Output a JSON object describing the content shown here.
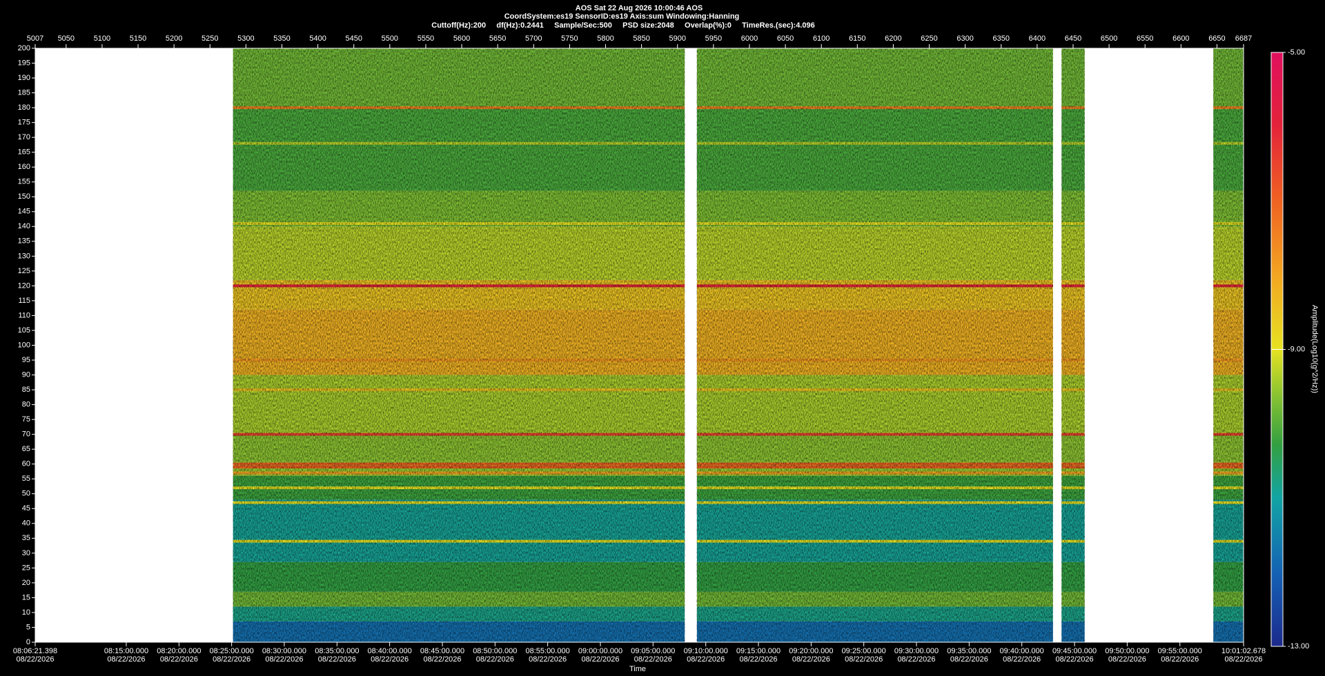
{
  "chart_data": {
    "type": "spectrogram",
    "title": "AOS  Sat 22 Aug 2026 10:00:46  AOS",
    "subtitle": "CoordSystem:es19   SensorID:es19   Axis:sum   Windowing:Hanning",
    "settings_line": "Cuttoff(Hz):200     df(Hz):0.2441     Sample/Sec:500     PSD size:2048     Overlap(%):0     TimeRes.(sec):4.096",
    "xlabel": "Time",
    "colorbar_label": "Amplitude(Log10(g^2/Hz))",
    "xlim": [
      5007,
      6687
    ],
    "xticks": [
      5007,
      5050,
      5100,
      5150,
      5200,
      5250,
      5300,
      5350,
      5400,
      5450,
      5500,
      5550,
      5600,
      5650,
      5700,
      5750,
      5800,
      5850,
      5900,
      5950,
      6000,
      6050,
      6100,
      6150,
      6200,
      6250,
      6300,
      6350,
      6400,
      6450,
      6500,
      6550,
      6600,
      6650,
      6687
    ],
    "x2ticks": [
      {
        "value": 5007,
        "label": "08:06:21.398\n08/22/2026"
      },
      {
        "value": 5133.6,
        "label": "08:15:00.000\n08/22/2026"
      },
      {
        "value": 5206.9,
        "label": "08:20:00.000\n08/22/2026"
      },
      {
        "value": 5280.1,
        "label": "08:25:00.000\n08/22/2026"
      },
      {
        "value": 5353.3,
        "label": "08:30:00.000\n08/22/2026"
      },
      {
        "value": 5426.6,
        "label": "08:35:00.000\n08/22/2026"
      },
      {
        "value": 5499.8,
        "label": "08:40:00.000\n08/22/2026"
      },
      {
        "value": 5573.1,
        "label": "08:45:00.000\n08/22/2026"
      },
      {
        "value": 5646.3,
        "label": "08:50:00.000\n08/22/2026"
      },
      {
        "value": 5719.5,
        "label": "08:55:00.000\n08/22/2026"
      },
      {
        "value": 5792.8,
        "label": "09:00:00.000\n08/22/2026"
      },
      {
        "value": 5866.0,
        "label": "09:05:00.000\n08/22/2026"
      },
      {
        "value": 5939.3,
        "label": "09:10:00.000\n08/22/2026"
      },
      {
        "value": 6012.5,
        "label": "09:15:00.000\n08/22/2026"
      },
      {
        "value": 6085.8,
        "label": "09:20:00.000\n08/22/2026"
      },
      {
        "value": 6159.0,
        "label": "09:25:00.000\n08/22/2026"
      },
      {
        "value": 6232.2,
        "label": "09:30:00.000\n08/22/2026"
      },
      {
        "value": 6305.5,
        "label": "09:35:00.000\n08/22/2026"
      },
      {
        "value": 6378.7,
        "label": "09:40:00.000\n08/22/2026"
      },
      {
        "value": 6452.0,
        "label": "09:45:00.000\n08/22/2026"
      },
      {
        "value": 6525.2,
        "label": "09:50:00.000\n08/22/2026"
      },
      {
        "value": 6598.5,
        "label": "09:55:00.000\n08/22/2026"
      },
      {
        "value": 6687,
        "label": "10:01:02.678\n08/22/2026"
      }
    ],
    "ylim": [
      0,
      200
    ],
    "yticks": [
      0,
      5,
      10,
      15,
      20,
      25,
      30,
      35,
      40,
      45,
      50,
      55,
      60,
      65,
      70,
      75,
      80,
      85,
      90,
      95,
      100,
      105,
      110,
      115,
      120,
      125,
      130,
      135,
      140,
      145,
      150,
      155,
      160,
      165,
      170,
      175,
      180,
      185,
      190,
      195,
      200
    ],
    "zlim": [
      -13,
      -5
    ],
    "zticks": [
      {
        "value": -13,
        "label": "-13.00"
      },
      {
        "value": -9,
        "label": "-9.00"
      },
      {
        "value": -5,
        "label": "-5.00"
      }
    ],
    "segments": [
      [
        5282,
        5910
      ],
      [
        5927,
        6422
      ],
      [
        6434,
        6466
      ],
      [
        6645,
        6687
      ]
    ],
    "freq_bins": [
      0,
      7,
      12,
      17,
      27,
      48,
      56,
      61,
      70,
      90,
      112,
      122,
      140,
      152,
      180,
      200
    ],
    "values": [
      -11.8,
      -10.8,
      -9.8,
      -10.3,
      -10.9,
      -10.2,
      -9.5,
      -9.6,
      -9.4,
      -8.2,
      -8.5,
      -9.3,
      -9.7,
      -10.1,
      -9.8
    ],
    "line_freqs": [
      120,
      70,
      60,
      59,
      57,
      180,
      95,
      85,
      52,
      47,
      34,
      141,
      168
    ],
    "line_values": [
      -6,
      -6.5,
      -7,
      -7,
      -8,
      -7.5,
      -7.8,
      -8.5,
      -9,
      -9,
      -9,
      -9,
      -9.3
    ]
  }
}
